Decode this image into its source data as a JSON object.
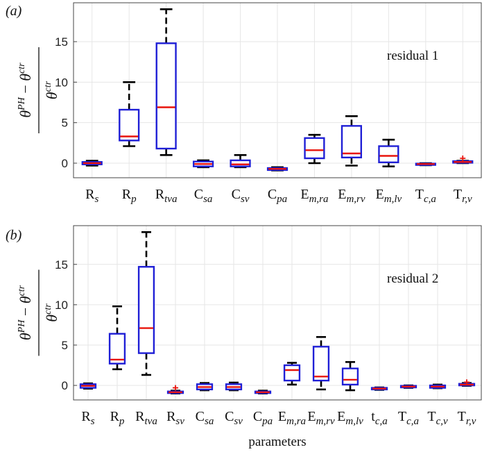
{
  "y_label": {
    "numerator": "θPH − θctr",
    "num_base1": "θ",
    "num_sup1": "PH",
    "num_op": " − ",
    "num_base2": "θ",
    "num_sup2": "ctr",
    "den_base": "θ",
    "den_sup": "ctr"
  },
  "x_axis_label": "parameters",
  "colors": {
    "box": "#1f1fd6",
    "median": "#e8140c",
    "whisker": "#000000",
    "outlier": "#e8140c",
    "grid": "#e6e6e6"
  },
  "chart_data": [
    {
      "type": "box",
      "panel_label": "(a)",
      "annotation": "residual 1",
      "ylim": [
        -1.8,
        19.8
      ],
      "yticks": [
        "0",
        "5",
        "10",
        "15"
      ],
      "grid": true,
      "categories": [
        {
          "base": "R",
          "sub": "s"
        },
        {
          "base": "R",
          "sub": "p"
        },
        {
          "base": "R",
          "sub": "tva"
        },
        {
          "base": "C",
          "sub": "sa"
        },
        {
          "base": "C",
          "sub": "sv"
        },
        {
          "base": "C",
          "sub": "pa"
        },
        {
          "base": "E",
          "sub": "m,ra"
        },
        {
          "base": "E",
          "sub": "m,rv"
        },
        {
          "base": "E",
          "sub": "m,lv"
        },
        {
          "base": "T",
          "sub": "c,a"
        },
        {
          "base": "T",
          "sub": "r,v"
        }
      ],
      "boxes": [
        {
          "low": -0.3,
          "q1": -0.15,
          "median": 0.0,
          "q3": 0.15,
          "high": 0.3,
          "outliers": []
        },
        {
          "low": 2.1,
          "q1": 2.8,
          "median": 3.3,
          "q3": 6.6,
          "high": 10.0,
          "outliers": []
        },
        {
          "low": 1.0,
          "q1": 1.8,
          "median": 6.9,
          "q3": 14.8,
          "high": 19.0,
          "outliers": []
        },
        {
          "low": -0.5,
          "q1": -0.4,
          "median": -0.1,
          "q3": 0.2,
          "high": 0.35,
          "outliers": []
        },
        {
          "low": -0.5,
          "q1": -0.4,
          "median": -0.15,
          "q3": 0.35,
          "high": 1.0,
          "outliers": []
        },
        {
          "low": -0.9,
          "q1": -0.85,
          "median": -0.7,
          "q3": -0.6,
          "high": -0.5,
          "outliers": []
        },
        {
          "low": 0.0,
          "q1": 0.6,
          "median": 1.6,
          "q3": 3.1,
          "high": 3.5,
          "outliers": []
        },
        {
          "low": -0.3,
          "q1": 0.7,
          "median": 1.2,
          "q3": 4.6,
          "high": 5.8,
          "outliers": []
        },
        {
          "low": -0.4,
          "q1": 0.1,
          "median": 0.9,
          "q3": 2.1,
          "high": 2.9,
          "outliers": []
        },
        {
          "low": -0.25,
          "q1": -0.2,
          "median": -0.1,
          "q3": -0.05,
          "high": 0.0,
          "outliers": []
        },
        {
          "low": 0.0,
          "q1": 0.05,
          "median": 0.15,
          "q3": 0.25,
          "high": 0.3,
          "outliers": [
            0.6
          ]
        }
      ]
    },
    {
      "type": "box",
      "panel_label": "(b)",
      "annotation": "residual 2",
      "ylim": [
        -1.8,
        19.8
      ],
      "yticks": [
        "0",
        "5",
        "10",
        "15"
      ],
      "grid": true,
      "categories": [
        {
          "base": "R",
          "sub": "s"
        },
        {
          "base": "R",
          "sub": "p"
        },
        {
          "base": "R",
          "sub": "tva"
        },
        {
          "base": "R",
          "sub": "sv"
        },
        {
          "base": "C",
          "sub": "sa"
        },
        {
          "base": "C",
          "sub": "sv"
        },
        {
          "base": "C",
          "sub": "pa"
        },
        {
          "base": "E",
          "sub": "m,ra"
        },
        {
          "base": "E",
          "sub": "m,rv"
        },
        {
          "base": "E",
          "sub": "m,lv"
        },
        {
          "base": "t",
          "sub": "c,a"
        },
        {
          "base": "T",
          "sub": "c,a"
        },
        {
          "base": "T",
          "sub": "c,v"
        },
        {
          "base": "T",
          "sub": "r,v"
        }
      ],
      "boxes": [
        {
          "low": -0.4,
          "q1": -0.3,
          "median": -0.05,
          "q3": 0.15,
          "high": 0.25,
          "outliers": []
        },
        {
          "low": 2.0,
          "q1": 2.7,
          "median": 3.2,
          "q3": 6.4,
          "high": 9.8,
          "outliers": []
        },
        {
          "low": 1.3,
          "q1": 4.0,
          "median": 7.1,
          "q3": 14.7,
          "high": 19.0,
          "outliers": []
        },
        {
          "low": -1.0,
          "q1": -0.95,
          "median": -0.85,
          "q3": -0.75,
          "high": -0.65,
          "outliers": [
            -0.3
          ]
        },
        {
          "low": -0.6,
          "q1": -0.5,
          "median": -0.2,
          "q3": 0.15,
          "high": 0.3,
          "outliers": []
        },
        {
          "low": -0.6,
          "q1": -0.5,
          "median": -0.2,
          "q3": 0.15,
          "high": 0.35,
          "outliers": []
        },
        {
          "low": -1.0,
          "q1": -0.95,
          "median": -0.85,
          "q3": -0.75,
          "high": -0.65,
          "outliers": []
        },
        {
          "low": 0.1,
          "q1": 0.6,
          "median": 1.9,
          "q3": 2.5,
          "high": 2.8,
          "outliers": []
        },
        {
          "low": -0.5,
          "q1": 0.6,
          "median": 1.1,
          "q3": 4.8,
          "high": 6.0,
          "outliers": []
        },
        {
          "low": -0.6,
          "q1": 0.1,
          "median": 0.7,
          "q3": 2.1,
          "high": 2.9,
          "outliers": []
        },
        {
          "low": -0.55,
          "q1": -0.5,
          "median": -0.4,
          "q3": -0.3,
          "high": -0.25,
          "outliers": []
        },
        {
          "low": -0.3,
          "q1": -0.25,
          "median": -0.15,
          "q3": -0.05,
          "high": 0.0,
          "outliers": []
        },
        {
          "low": -0.35,
          "q1": -0.3,
          "median": -0.15,
          "q3": 0.0,
          "high": 0.1,
          "outliers": []
        },
        {
          "low": -0.05,
          "q1": 0.0,
          "median": 0.1,
          "q3": 0.2,
          "high": 0.3,
          "outliers": [
            0.4
          ]
        }
      ]
    }
  ]
}
